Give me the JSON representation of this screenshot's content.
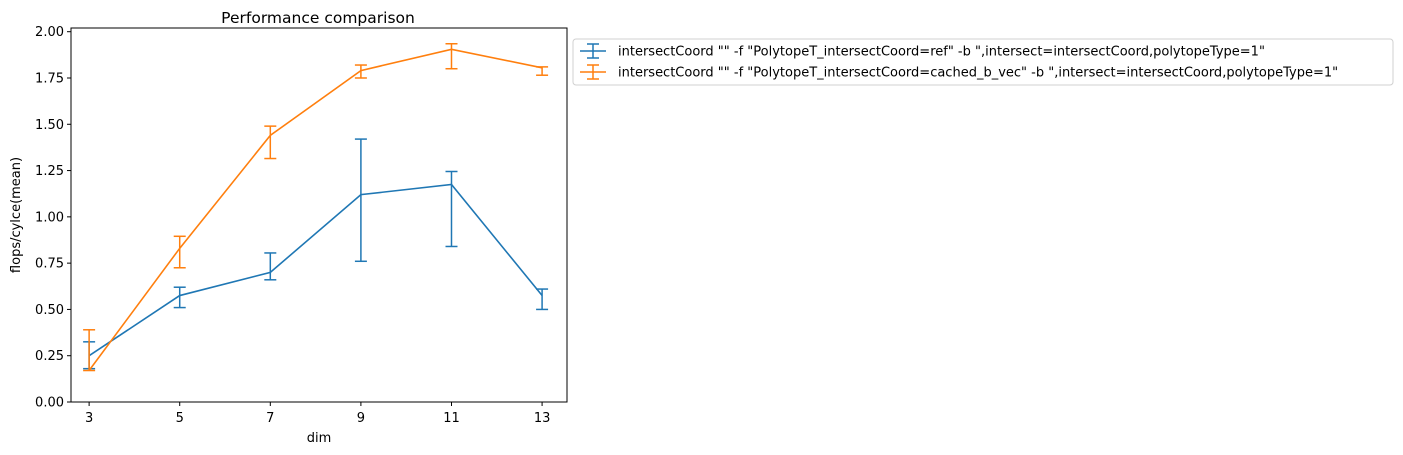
{
  "chart_data": {
    "type": "line",
    "title": "Performance comparison",
    "xlabel": "dim",
    "ylabel": "flops/cylce(mean)",
    "x": [
      3,
      5,
      7,
      9,
      11,
      13
    ],
    "xticks": [
      "3",
      "5",
      "7",
      "9",
      "11",
      "13"
    ],
    "xlim": [
      2.6,
      13.55
    ],
    "ylim": [
      0,
      2.02
    ],
    "yticks": [
      "0.00",
      "0.25",
      "0.50",
      "0.75",
      "1.00",
      "1.25",
      "1.50",
      "1.75",
      "2.00"
    ],
    "grid": false,
    "legend_position": "outside-right-top",
    "series": [
      {
        "name": "intersectCoord \"\" -f \"PolytopeT_intersectCoord=ref\" -b \",intersect=intersectCoord,polytopeType=1\"",
        "color": "#1f77b4",
        "values": [
          0.25,
          0.575,
          0.7,
          1.12,
          1.175,
          0.575
        ],
        "err_low": [
          0.18,
          0.51,
          0.66,
          0.76,
          0.84,
          0.5
        ],
        "err_high": [
          0.325,
          0.62,
          0.805,
          1.42,
          1.245,
          0.61
        ]
      },
      {
        "name": "intersectCoord \"\" -f \"PolytopeT_intersectCoord=cached_b_vec\" -b \",intersect=intersectCoord,polytopeType=1\"",
        "color": "#ff7f0e",
        "values": [
          0.17,
          0.83,
          1.44,
          1.79,
          1.905,
          1.805
        ],
        "err_low": [
          0.17,
          0.725,
          1.315,
          1.75,
          1.8,
          1.765
        ],
        "err_high": [
          0.39,
          0.895,
          1.49,
          1.82,
          1.935,
          1.81
        ]
      }
    ]
  }
}
